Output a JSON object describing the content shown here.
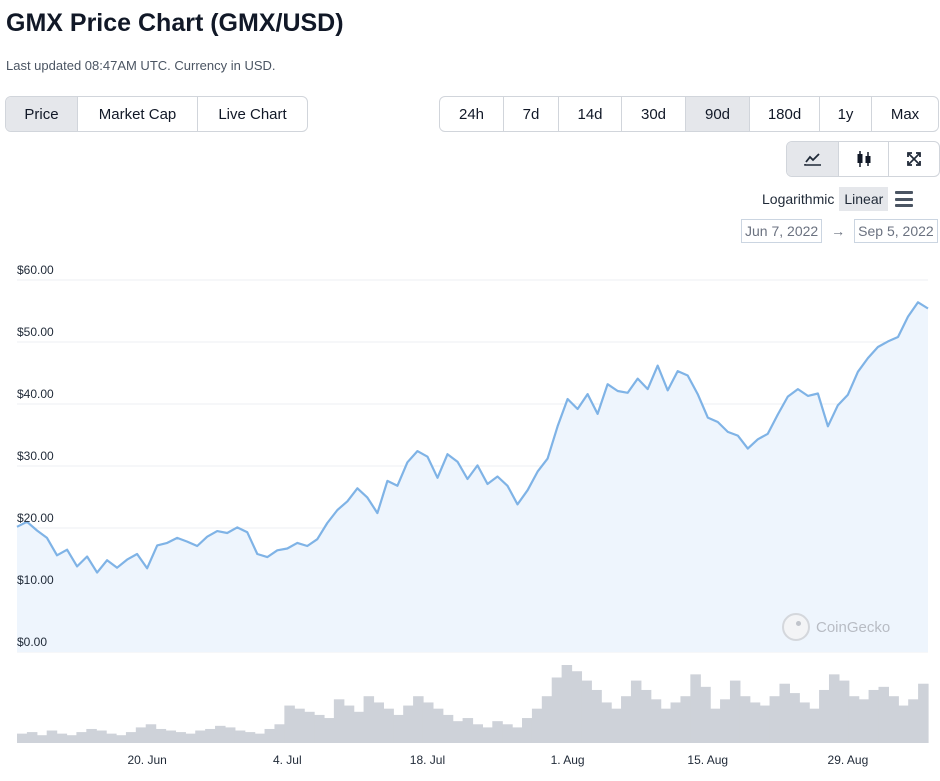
{
  "page": {
    "title": "GMX Price Chart (GMX/USD)",
    "updated": "Last updated 08:47AM UTC. Currency in USD."
  },
  "view_tabs": [
    {
      "label": "Price",
      "active": true
    },
    {
      "label": "Market Cap",
      "active": false
    },
    {
      "label": "Live Chart",
      "active": false
    }
  ],
  "range_tabs": [
    {
      "label": "24h",
      "active": false
    },
    {
      "label": "7d",
      "active": false
    },
    {
      "label": "14d",
      "active": false
    },
    {
      "label": "30d",
      "active": false
    },
    {
      "label": "90d",
      "active": true
    },
    {
      "label": "180d",
      "active": false
    },
    {
      "label": "1y",
      "active": false
    },
    {
      "label": "Max",
      "active": false
    }
  ],
  "chart_type_tabs": [
    {
      "icon": "line-chart-icon",
      "active": true
    },
    {
      "icon": "candlestick-icon",
      "active": false
    },
    {
      "icon": "expand-icon",
      "active": false
    }
  ],
  "scale": {
    "log_label": "Logarithmic",
    "linear_label": "Linear",
    "active": "Linear"
  },
  "date_range": {
    "from": "Jun 7, 2022",
    "to": "Sep 5, 2022",
    "arrow": "→"
  },
  "watermark": "CoinGecko",
  "colors": {
    "line": "#7fb3e6",
    "area": "#eef5fd",
    "volume": "#ced2d9",
    "grid": "#eceff3"
  },
  "chart_data": {
    "type": "area",
    "title": "GMX Price Chart (GMX/USD)",
    "y_ticks": [
      "$0.00",
      "$10.00",
      "$20.00",
      "$30.00",
      "$40.00",
      "$50.00",
      "$60.00"
    ],
    "x_ticks": [
      "20. Jun",
      "4. Jul",
      "18. Jul",
      "1. Aug",
      "15. Aug",
      "29. Aug"
    ],
    "ylim": [
      0,
      60
    ],
    "grid": true,
    "x_start_day": 0,
    "x_end_day": 91,
    "x_tick_days": [
      13,
      27,
      41,
      55,
      69,
      83
    ],
    "series": [
      {
        "points": [
          [
            0,
            20.2
          ],
          [
            1,
            21
          ],
          [
            2,
            19.6
          ],
          [
            3,
            18.4
          ],
          [
            4,
            15.6
          ],
          [
            5,
            16.5
          ],
          [
            6,
            13.8
          ],
          [
            7,
            15.4
          ],
          [
            8,
            12.8
          ],
          [
            9,
            14.8
          ],
          [
            10,
            13.6
          ],
          [
            11,
            14.9
          ],
          [
            12,
            15.8
          ],
          [
            13,
            13.5
          ],
          [
            14,
            17.2
          ],
          [
            15,
            17.6
          ],
          [
            16,
            18.4
          ],
          [
            17,
            17.8
          ],
          [
            18,
            17.1
          ],
          [
            19,
            18.6
          ],
          [
            20,
            19.5
          ],
          [
            21,
            19.2
          ],
          [
            22,
            20.1
          ],
          [
            23,
            19.3
          ],
          [
            24,
            15.8
          ],
          [
            25,
            15.3
          ],
          [
            26,
            16.4
          ],
          [
            27,
            16.7
          ],
          [
            28,
            17.6
          ],
          [
            29,
            17.1
          ],
          [
            30,
            18.2
          ],
          [
            31,
            20.8
          ],
          [
            32,
            22.9
          ],
          [
            33,
            24.3
          ],
          [
            34,
            26.4
          ],
          [
            35,
            24.9
          ],
          [
            36,
            22.4
          ],
          [
            37,
            27.6
          ],
          [
            38,
            26.8
          ],
          [
            39,
            30.6
          ],
          [
            40,
            32.4
          ],
          [
            41,
            31.5
          ],
          [
            42,
            28.1
          ],
          [
            43,
            31.9
          ],
          [
            44,
            30.7
          ],
          [
            45,
            27.9
          ],
          [
            46,
            30.1
          ],
          [
            47,
            27.1
          ],
          [
            48,
            28.3
          ],
          [
            49,
            26.8
          ],
          [
            50,
            23.8
          ],
          [
            51,
            26.1
          ],
          [
            52,
            29.1
          ],
          [
            53,
            31.2
          ],
          [
            54,
            36.4
          ],
          [
            55,
            40.8
          ],
          [
            56,
            39.2
          ],
          [
            57,
            41.6
          ],
          [
            58,
            38.4
          ],
          [
            59,
            43.2
          ],
          [
            60,
            42.1
          ],
          [
            61,
            41.8
          ],
          [
            62,
            44.1
          ],
          [
            63,
            42.4
          ],
          [
            64,
            46.2
          ],
          [
            65,
            42.2
          ],
          [
            66,
            45.3
          ],
          [
            67,
            44.6
          ],
          [
            68,
            41.6
          ],
          [
            69,
            37.8
          ],
          [
            70,
            37.1
          ],
          [
            71,
            35.5
          ],
          [
            72,
            34.9
          ],
          [
            73,
            32.8
          ],
          [
            74,
            34.3
          ],
          [
            75,
            35.2
          ],
          [
            76,
            38.3
          ],
          [
            77,
            41.2
          ],
          [
            78,
            42.4
          ],
          [
            79,
            41.3
          ],
          [
            80,
            41.7
          ],
          [
            81,
            36.4
          ],
          [
            82,
            39.8
          ],
          [
            83,
            41.5
          ],
          [
            84,
            45.2
          ],
          [
            85,
            47.4
          ],
          [
            86,
            49.2
          ],
          [
            87,
            50.1
          ],
          [
            88,
            50.8
          ],
          [
            89,
            54.1
          ],
          [
            90,
            56.4
          ],
          [
            91,
            55.4
          ]
        ]
      }
    ],
    "volume": [
      6,
      7,
      5,
      8,
      6,
      5,
      7,
      9,
      8,
      6,
      5,
      7,
      10,
      12,
      9,
      8,
      7,
      6,
      8,
      9,
      11,
      10,
      8,
      7,
      6,
      9,
      12,
      24,
      22,
      20,
      18,
      16,
      28,
      24,
      20,
      30,
      26,
      22,
      18,
      24,
      30,
      26,
      22,
      18,
      14,
      16,
      12,
      10,
      14,
      12,
      10,
      16,
      22,
      30,
      42,
      50,
      46,
      40,
      34,
      26,
      22,
      30,
      40,
      34,
      28,
      22,
      26,
      30,
      44,
      36,
      22,
      28,
      40,
      30,
      26,
      24,
      30,
      38,
      32,
      26,
      22,
      34,
      44,
      40,
      30,
      28,
      34,
      36,
      30,
      24,
      28,
      38
    ]
  }
}
